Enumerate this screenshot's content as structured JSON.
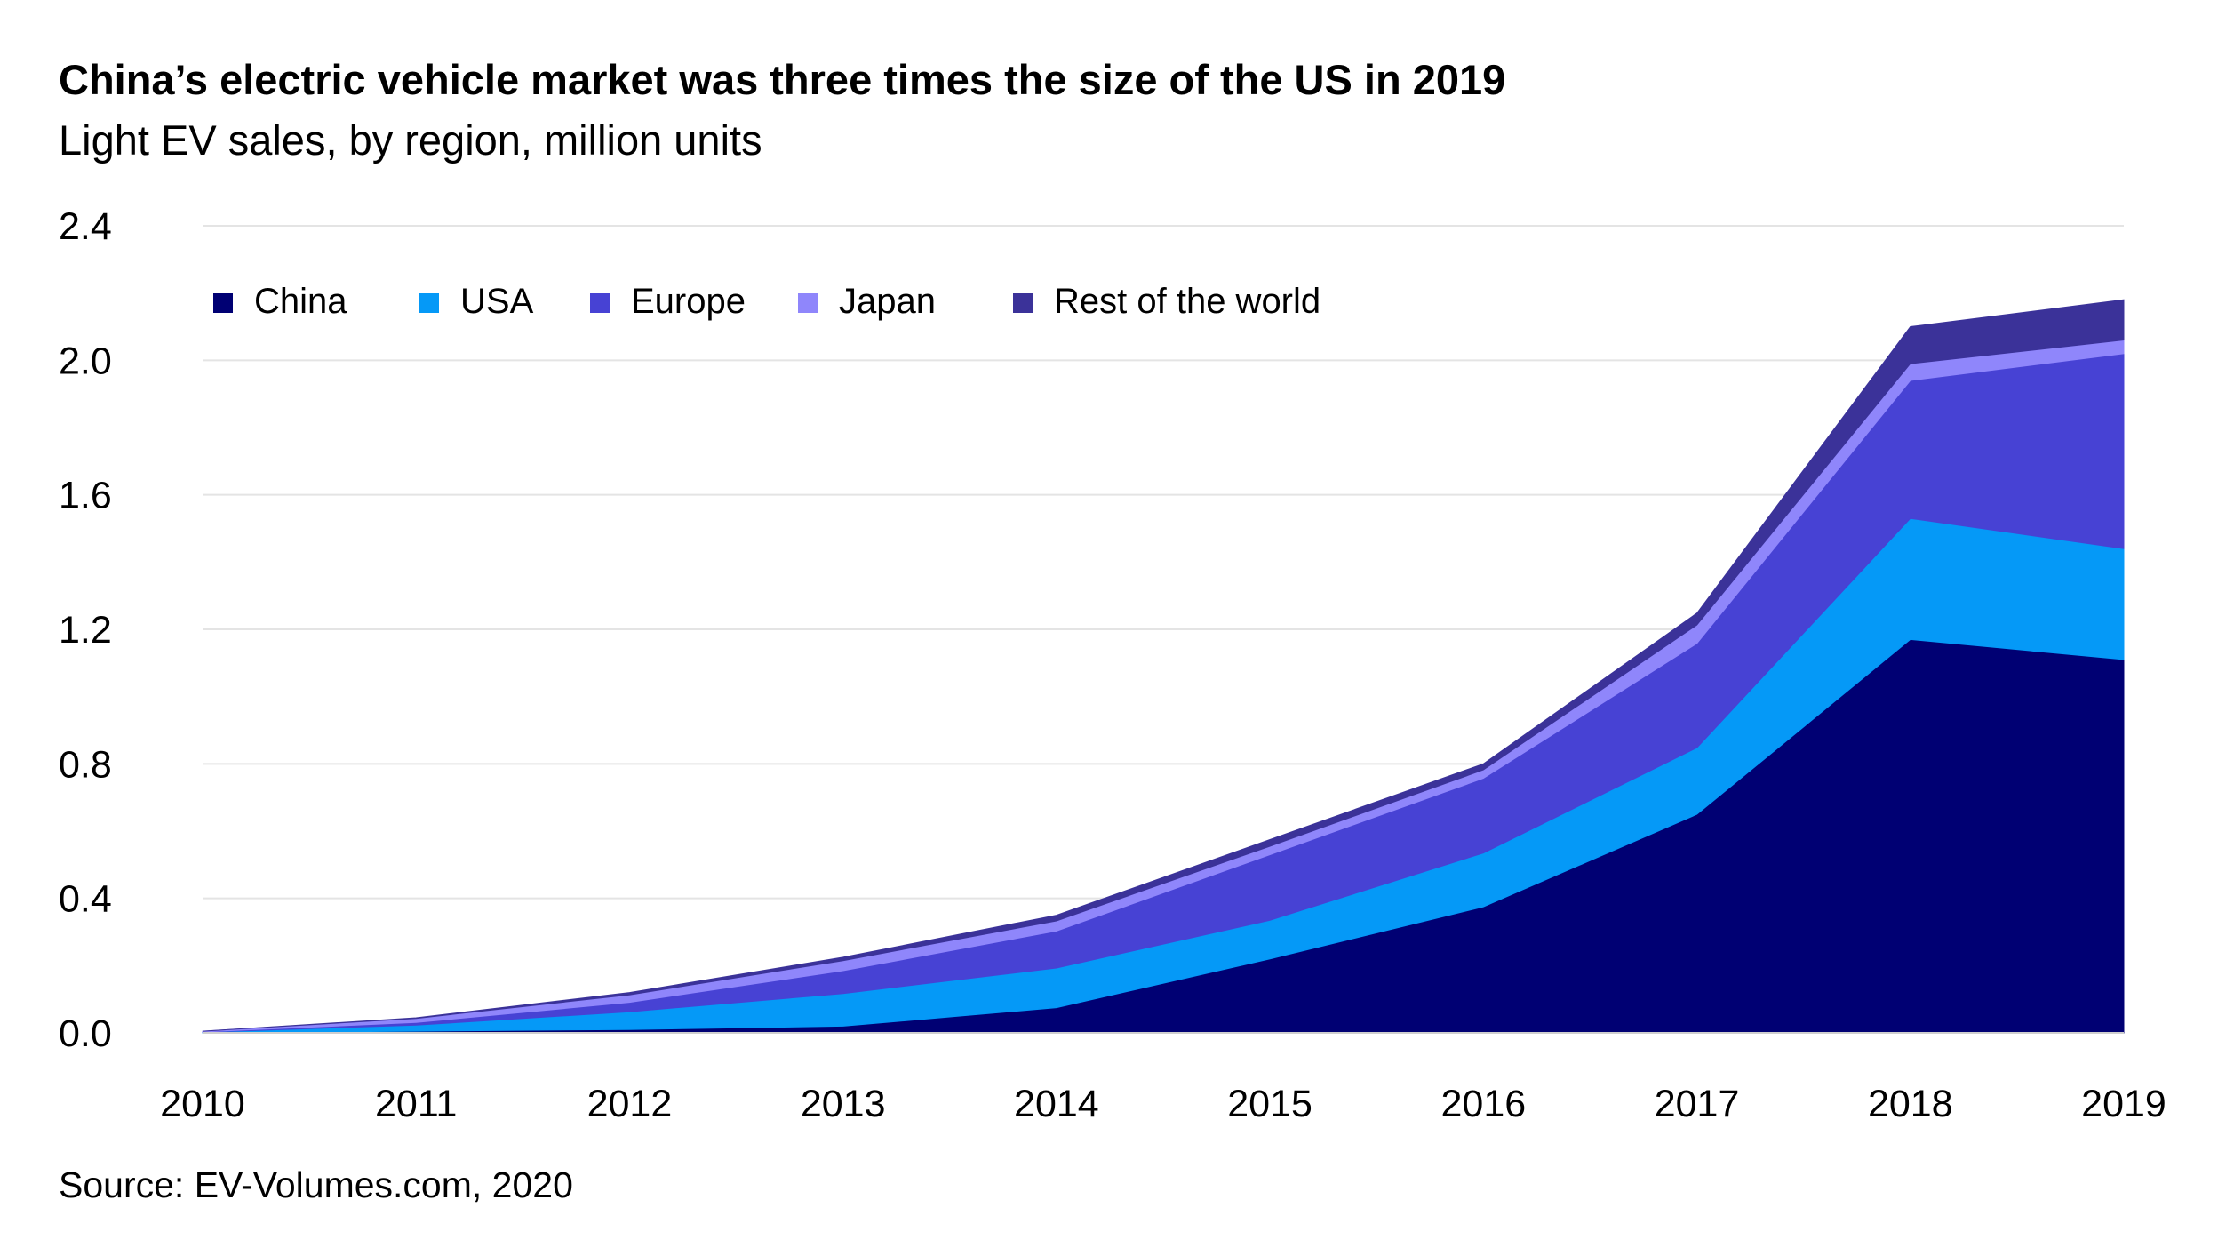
{
  "title": "China’s electric vehicle market was three times the size of the US in 2019",
  "subtitle": "Light EV sales, by region, million units",
  "source": "Source: EV-Volumes.com, 2020",
  "chart_data": {
    "type": "area",
    "stacked": true,
    "x": [
      2010,
      2011,
      2012,
      2013,
      2014,
      2015,
      2016,
      2017,
      2018,
      2019
    ],
    "ylim": [
      0,
      2.4
    ],
    "yticks": [
      "0.0",
      "0.4",
      "0.8",
      "1.2",
      "1.6",
      "2.0",
      "2.4"
    ],
    "xticks": [
      "2010",
      "2011",
      "2012",
      "2013",
      "2014",
      "2015",
      "2016",
      "2017",
      "2018",
      "2019"
    ],
    "grid": true,
    "legend_position": "top-left",
    "series": [
      {
        "name": "China",
        "color": "#000073",
        "values": [
          0.0,
          0.005,
          0.01,
          0.02,
          0.075,
          0.22,
          0.375,
          0.65,
          1.17,
          1.11
        ]
      },
      {
        "name": "USA",
        "color": "#0599f7",
        "values": [
          0.002,
          0.018,
          0.053,
          0.097,
          0.118,
          0.115,
          0.16,
          0.198,
          0.36,
          0.33
        ]
      },
      {
        "name": "Europe",
        "color": "#4742d4",
        "values": [
          0.001,
          0.008,
          0.028,
          0.068,
          0.11,
          0.195,
          0.222,
          0.31,
          0.41,
          0.58
        ]
      },
      {
        "name": "Japan",
        "color": "#8f86fb",
        "values": [
          0.002,
          0.012,
          0.022,
          0.03,
          0.03,
          0.025,
          0.025,
          0.055,
          0.05,
          0.04
        ]
      },
      {
        "name": "Rest of the world",
        "color": "#3b3299",
        "values": [
          0.0,
          0.002,
          0.007,
          0.01,
          0.017,
          0.02,
          0.018,
          0.035,
          0.11,
          0.12
        ]
      }
    ]
  }
}
